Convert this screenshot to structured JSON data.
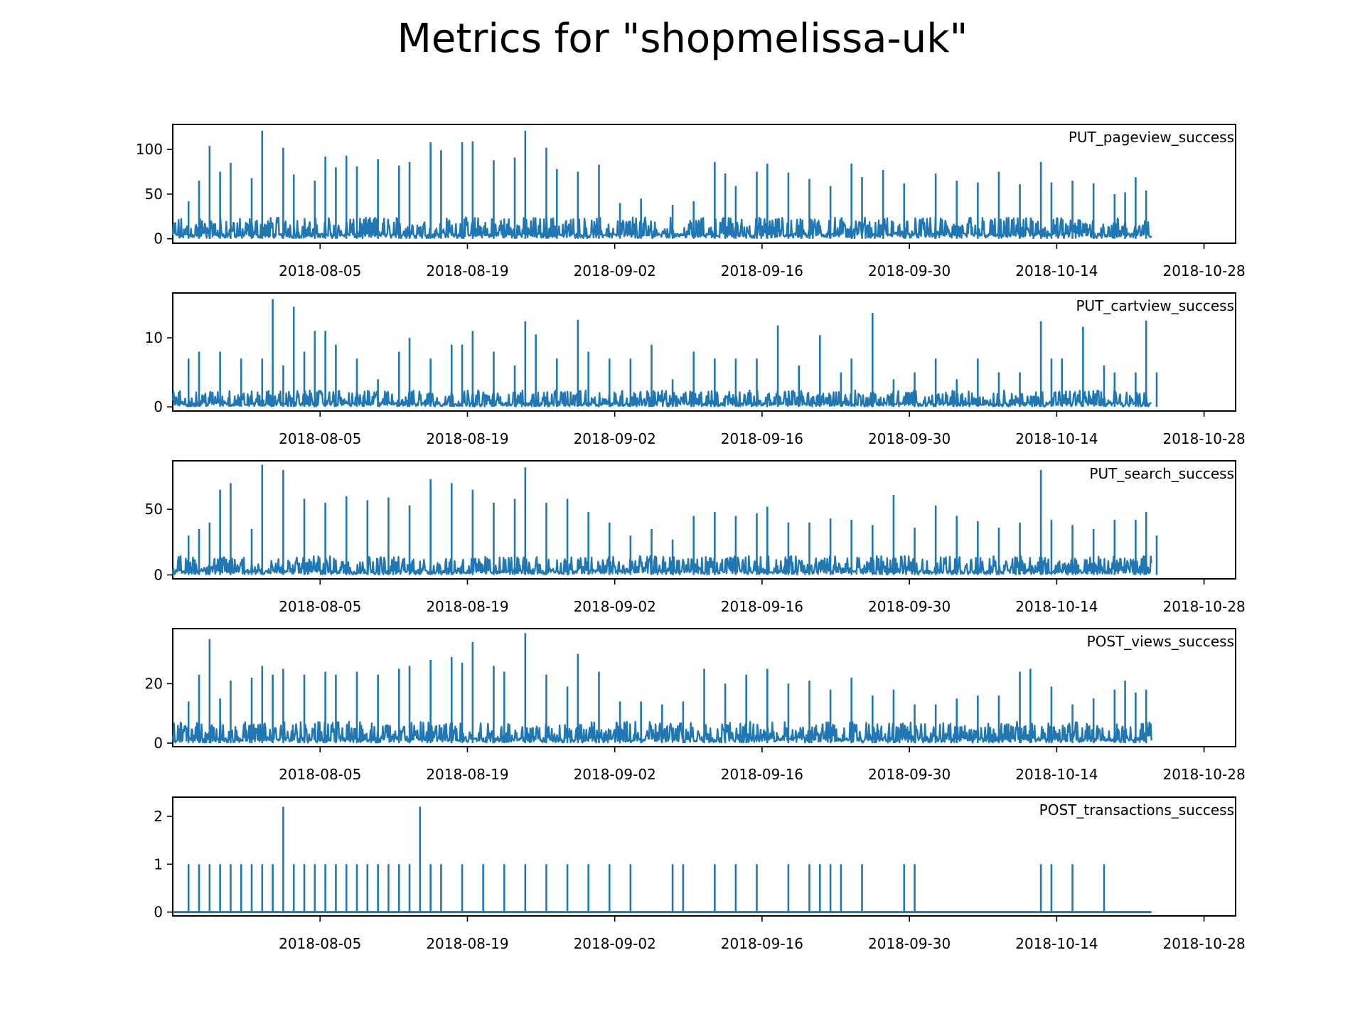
{
  "figure": {
    "title": "Metrics for \"shopmelissa-uk\""
  },
  "colors": {
    "series": "#1f77b4",
    "axis": "#000000",
    "background": "#ffffff"
  },
  "chart_data": [
    {
      "type": "line",
      "title": "PUT_pageview_success",
      "xlabel": "",
      "ylabel": "",
      "x_range": [
        "2018-07-22",
        "2018-10-23"
      ],
      "x_ticks": [
        "2018-08-05",
        "2018-08-19",
        "2018-09-02",
        "2018-09-16",
        "2018-09-30",
        "2018-10-14",
        "2018-10-28"
      ],
      "ylim": [
        -5,
        128
      ],
      "y_ticks": [
        0,
        50,
        100
      ],
      "legend": "none",
      "grid": false,
      "baseline": 10,
      "spikes": [
        [
          "2018-07-23",
          42
        ],
        [
          "2018-07-24",
          65
        ],
        [
          "2018-07-25",
          104
        ],
        [
          "2018-07-26",
          75
        ],
        [
          "2018-07-27",
          85
        ],
        [
          "2018-07-29",
          68
        ],
        [
          "2018-07-30",
          121
        ],
        [
          "2018-08-01",
          102
        ],
        [
          "2018-08-02",
          72
        ],
        [
          "2018-08-04",
          65
        ],
        [
          "2018-08-05",
          92
        ],
        [
          "2018-08-06",
          80
        ],
        [
          "2018-08-07",
          93
        ],
        [
          "2018-08-08",
          81
        ],
        [
          "2018-08-10",
          89
        ],
        [
          "2018-08-12",
          82
        ],
        [
          "2018-08-13",
          86
        ],
        [
          "2018-08-15",
          108
        ],
        [
          "2018-08-16",
          99
        ],
        [
          "2018-08-18",
          108
        ],
        [
          "2018-08-19",
          109
        ],
        [
          "2018-08-21",
          88
        ],
        [
          "2018-08-23",
          91
        ],
        [
          "2018-08-24",
          121
        ],
        [
          "2018-08-26",
          102
        ],
        [
          "2018-08-27",
          78
        ],
        [
          "2018-08-29",
          75
        ],
        [
          "2018-08-31",
          83
        ],
        [
          "2018-09-02",
          40
        ],
        [
          "2018-09-04",
          45
        ],
        [
          "2018-09-07",
          38
        ],
        [
          "2018-09-09",
          42
        ],
        [
          "2018-09-11",
          86
        ],
        [
          "2018-09-12",
          73
        ],
        [
          "2018-09-13",
          59
        ],
        [
          "2018-09-15",
          75
        ],
        [
          "2018-09-16",
          84
        ],
        [
          "2018-09-18",
          74
        ],
        [
          "2018-09-20",
          67
        ],
        [
          "2018-09-22",
          59
        ],
        [
          "2018-09-24",
          84
        ],
        [
          "2018-09-25",
          69
        ],
        [
          "2018-09-27",
          77
        ],
        [
          "2018-09-29",
          62
        ],
        [
          "2018-10-02",
          73
        ],
        [
          "2018-10-04",
          65
        ],
        [
          "2018-10-06",
          63
        ],
        [
          "2018-10-08",
          75
        ],
        [
          "2018-10-10",
          61
        ],
        [
          "2018-10-12",
          86
        ],
        [
          "2018-10-13",
          63
        ],
        [
          "2018-10-15",
          65
        ],
        [
          "2018-10-17",
          62
        ],
        [
          "2018-10-19",
          50
        ],
        [
          "2018-10-20",
          52
        ],
        [
          "2018-10-21",
          69
        ],
        [
          "2018-10-22",
          54
        ]
      ]
    },
    {
      "type": "line",
      "title": "PUT_cartview_success",
      "xlabel": "",
      "ylabel": "",
      "x_range": [
        "2018-07-22",
        "2018-10-23"
      ],
      "x_ticks": [
        "2018-08-05",
        "2018-08-19",
        "2018-09-02",
        "2018-09-16",
        "2018-09-30",
        "2018-10-14",
        "2018-10-28"
      ],
      "ylim": [
        -0.6,
        16.5
      ],
      "y_ticks": [
        0,
        10
      ],
      "legend": "none",
      "grid": false,
      "baseline": 1,
      "spikes": [
        [
          "2018-07-23",
          7
        ],
        [
          "2018-07-24",
          8
        ],
        [
          "2018-07-26",
          8
        ],
        [
          "2018-07-28",
          7
        ],
        [
          "2018-07-30",
          7
        ],
        [
          "2018-07-31",
          15.6
        ],
        [
          "2018-08-01",
          6
        ],
        [
          "2018-08-02",
          14.5
        ],
        [
          "2018-08-03",
          8
        ],
        [
          "2018-08-04",
          11
        ],
        [
          "2018-08-05",
          11
        ],
        [
          "2018-08-06",
          9
        ],
        [
          "2018-08-08",
          7
        ],
        [
          "2018-08-10",
          4
        ],
        [
          "2018-08-12",
          8
        ],
        [
          "2018-08-13",
          10
        ],
        [
          "2018-08-15",
          7
        ],
        [
          "2018-08-17",
          9
        ],
        [
          "2018-08-18",
          9
        ],
        [
          "2018-08-19",
          11
        ],
        [
          "2018-08-21",
          8
        ],
        [
          "2018-08-23",
          6
        ],
        [
          "2018-08-24",
          12.4
        ],
        [
          "2018-08-25",
          10.5
        ],
        [
          "2018-08-27",
          7
        ],
        [
          "2018-08-29",
          12.6
        ],
        [
          "2018-08-30",
          8
        ],
        [
          "2018-09-01",
          7
        ],
        [
          "2018-09-03",
          7
        ],
        [
          "2018-09-05",
          9
        ],
        [
          "2018-09-07",
          4
        ],
        [
          "2018-09-09",
          8
        ],
        [
          "2018-09-11",
          7
        ],
        [
          "2018-09-13",
          7
        ],
        [
          "2018-09-15",
          7
        ],
        [
          "2018-09-17",
          11.8
        ],
        [
          "2018-09-19",
          6
        ],
        [
          "2018-09-21",
          10.4
        ],
        [
          "2018-09-23",
          5
        ],
        [
          "2018-09-24",
          7
        ],
        [
          "2018-09-26",
          13.6
        ],
        [
          "2018-09-28",
          4
        ],
        [
          "2018-09-30",
          5
        ],
        [
          "2018-10-02",
          7
        ],
        [
          "2018-10-04",
          4
        ],
        [
          "2018-10-06",
          7
        ],
        [
          "2018-10-08",
          5
        ],
        [
          "2018-10-10",
          5
        ],
        [
          "2018-10-12",
          12.4
        ],
        [
          "2018-10-13",
          7
        ],
        [
          "2018-10-14",
          7
        ],
        [
          "2018-10-16",
          11.6
        ],
        [
          "2018-10-18",
          6
        ],
        [
          "2018-10-19",
          5
        ],
        [
          "2018-10-21",
          5
        ],
        [
          "2018-10-22",
          12.5
        ],
        [
          "2018-10-23",
          5
        ]
      ]
    },
    {
      "type": "line",
      "title": "PUT_search_success",
      "xlabel": "",
      "ylabel": "",
      "x_range": [
        "2018-07-22",
        "2018-10-23"
      ],
      "x_ticks": [
        "2018-08-05",
        "2018-08-19",
        "2018-09-02",
        "2018-09-16",
        "2018-09-30",
        "2018-10-14",
        "2018-10-28"
      ],
      "ylim": [
        -3,
        87
      ],
      "y_ticks": [
        0,
        50
      ],
      "legend": "none",
      "grid": false,
      "baseline": 6,
      "spikes": [
        [
          "2018-07-23",
          30
        ],
        [
          "2018-07-24",
          35
        ],
        [
          "2018-07-25",
          40
        ],
        [
          "2018-07-26",
          65
        ],
        [
          "2018-07-27",
          70
        ],
        [
          "2018-07-29",
          35
        ],
        [
          "2018-07-30",
          84
        ],
        [
          "2018-08-01",
          80
        ],
        [
          "2018-08-03",
          58
        ],
        [
          "2018-08-05",
          55
        ],
        [
          "2018-08-07",
          60
        ],
        [
          "2018-08-09",
          57
        ],
        [
          "2018-08-11",
          59
        ],
        [
          "2018-08-13",
          53
        ],
        [
          "2018-08-15",
          73
        ],
        [
          "2018-08-17",
          70
        ],
        [
          "2018-08-19",
          65
        ],
        [
          "2018-08-21",
          55
        ],
        [
          "2018-08-23",
          58
        ],
        [
          "2018-08-24",
          82
        ],
        [
          "2018-08-26",
          55
        ],
        [
          "2018-08-28",
          58
        ],
        [
          "2018-08-30",
          48
        ],
        [
          "2018-09-01",
          40
        ],
        [
          "2018-09-03",
          30
        ],
        [
          "2018-09-05",
          35
        ],
        [
          "2018-09-07",
          27
        ],
        [
          "2018-09-09",
          45
        ],
        [
          "2018-09-11",
          48
        ],
        [
          "2018-09-13",
          45
        ],
        [
          "2018-09-15",
          47
        ],
        [
          "2018-09-16",
          52
        ],
        [
          "2018-09-18",
          40
        ],
        [
          "2018-09-20",
          40
        ],
        [
          "2018-09-22",
          43
        ],
        [
          "2018-09-24",
          42
        ],
        [
          "2018-09-26",
          38
        ],
        [
          "2018-09-28",
          61
        ],
        [
          "2018-09-30",
          36
        ],
        [
          "2018-10-02",
          53
        ],
        [
          "2018-10-04",
          45
        ],
        [
          "2018-10-06",
          41
        ],
        [
          "2018-10-08",
          36
        ],
        [
          "2018-10-10",
          40
        ],
        [
          "2018-10-12",
          80
        ],
        [
          "2018-10-13",
          42
        ],
        [
          "2018-10-15",
          38
        ],
        [
          "2018-10-17",
          35
        ],
        [
          "2018-10-19",
          42
        ],
        [
          "2018-10-21",
          42
        ],
        [
          "2018-10-22",
          48
        ],
        [
          "2018-10-23",
          30
        ]
      ]
    },
    {
      "type": "line",
      "title": "POST_views_success",
      "xlabel": "",
      "ylabel": "",
      "x_range": [
        "2018-07-22",
        "2018-10-23"
      ],
      "x_ticks": [
        "2018-08-05",
        "2018-08-19",
        "2018-09-02",
        "2018-09-16",
        "2018-09-30",
        "2018-10-14",
        "2018-10-28"
      ],
      "ylim": [
        -1.2,
        38.5
      ],
      "y_ticks": [
        0,
        20
      ],
      "legend": "none",
      "grid": false,
      "baseline": 3,
      "spikes": [
        [
          "2018-07-23",
          14
        ],
        [
          "2018-07-24",
          23
        ],
        [
          "2018-07-25",
          35
        ],
        [
          "2018-07-26",
          15
        ],
        [
          "2018-07-27",
          21
        ],
        [
          "2018-07-29",
          22
        ],
        [
          "2018-07-30",
          26
        ],
        [
          "2018-07-31",
          23
        ],
        [
          "2018-08-01",
          25
        ],
        [
          "2018-08-03",
          23
        ],
        [
          "2018-08-05",
          24
        ],
        [
          "2018-08-06",
          23
        ],
        [
          "2018-08-08",
          24
        ],
        [
          "2018-08-10",
          23
        ],
        [
          "2018-08-12",
          25
        ],
        [
          "2018-08-13",
          26
        ],
        [
          "2018-08-15",
          28
        ],
        [
          "2018-08-17",
          29
        ],
        [
          "2018-08-18",
          27
        ],
        [
          "2018-08-19",
          34
        ],
        [
          "2018-08-21",
          26
        ],
        [
          "2018-08-22",
          24
        ],
        [
          "2018-08-24",
          37
        ],
        [
          "2018-08-26",
          23
        ],
        [
          "2018-08-28",
          19
        ],
        [
          "2018-08-29",
          30
        ],
        [
          "2018-08-31",
          24
        ],
        [
          "2018-09-02",
          14
        ],
        [
          "2018-09-04",
          14
        ],
        [
          "2018-09-06",
          13
        ],
        [
          "2018-09-08",
          14
        ],
        [
          "2018-09-10",
          25
        ],
        [
          "2018-09-12",
          20
        ],
        [
          "2018-09-14",
          23
        ],
        [
          "2018-09-16",
          25
        ],
        [
          "2018-09-18",
          20
        ],
        [
          "2018-09-20",
          21
        ],
        [
          "2018-09-22",
          18
        ],
        [
          "2018-09-24",
          22
        ],
        [
          "2018-09-26",
          16
        ],
        [
          "2018-09-28",
          18
        ],
        [
          "2018-09-30",
          13
        ],
        [
          "2018-10-02",
          13
        ],
        [
          "2018-10-04",
          15
        ],
        [
          "2018-10-06",
          16
        ],
        [
          "2018-10-08",
          16
        ],
        [
          "2018-10-10",
          24
        ],
        [
          "2018-10-11",
          25
        ],
        [
          "2018-10-13",
          19
        ],
        [
          "2018-10-15",
          13
        ],
        [
          "2018-10-17",
          15
        ],
        [
          "2018-10-19",
          18
        ],
        [
          "2018-10-20",
          21
        ],
        [
          "2018-10-21",
          17
        ],
        [
          "2018-10-22",
          18
        ]
      ]
    },
    {
      "type": "line",
      "title": "POST_transactions_success",
      "xlabel": "",
      "ylabel": "",
      "x_range": [
        "2018-07-22",
        "2018-10-23"
      ],
      "x_ticks": [
        "2018-08-05",
        "2018-08-19",
        "2018-09-02",
        "2018-09-16",
        "2018-09-30",
        "2018-10-14",
        "2018-10-28"
      ],
      "ylim": [
        -0.08,
        2.4
      ],
      "y_ticks": [
        0,
        1,
        2
      ],
      "legend": "none",
      "grid": false,
      "baseline": 0,
      "spikes": [
        [
          "2018-07-23",
          1
        ],
        [
          "2018-07-24",
          1
        ],
        [
          "2018-07-25",
          1
        ],
        [
          "2018-07-26",
          1
        ],
        [
          "2018-07-27",
          1
        ],
        [
          "2018-07-28",
          1
        ],
        [
          "2018-07-29",
          1
        ],
        [
          "2018-07-30",
          1
        ],
        [
          "2018-07-31",
          1
        ],
        [
          "2018-08-01",
          2.2
        ],
        [
          "2018-08-02",
          1
        ],
        [
          "2018-08-03",
          1
        ],
        [
          "2018-08-04",
          1
        ],
        [
          "2018-08-05",
          1
        ],
        [
          "2018-08-06",
          1
        ],
        [
          "2018-08-07",
          1
        ],
        [
          "2018-08-08",
          1
        ],
        [
          "2018-08-09",
          1
        ],
        [
          "2018-08-10",
          1
        ],
        [
          "2018-08-11",
          1
        ],
        [
          "2018-08-12",
          1
        ],
        [
          "2018-08-13",
          1
        ],
        [
          "2018-08-14",
          2.2
        ],
        [
          "2018-08-15",
          1
        ],
        [
          "2018-08-16",
          1
        ],
        [
          "2018-08-18",
          1
        ],
        [
          "2018-08-20",
          1
        ],
        [
          "2018-08-22",
          1
        ],
        [
          "2018-08-24",
          1
        ],
        [
          "2018-08-26",
          1
        ],
        [
          "2018-08-28",
          1
        ],
        [
          "2018-08-30",
          1
        ],
        [
          "2018-09-01",
          1
        ],
        [
          "2018-09-03",
          1
        ],
        [
          "2018-09-07",
          1
        ],
        [
          "2018-09-08",
          1
        ],
        [
          "2018-09-11",
          1
        ],
        [
          "2018-09-13",
          1
        ],
        [
          "2018-09-15",
          1
        ],
        [
          "2018-09-18",
          1
        ],
        [
          "2018-09-20",
          1
        ],
        [
          "2018-09-21",
          1
        ],
        [
          "2018-09-22",
          1
        ],
        [
          "2018-09-23",
          1
        ],
        [
          "2018-09-25",
          1
        ],
        [
          "2018-09-29",
          1
        ],
        [
          "2018-09-30",
          1
        ],
        [
          "2018-10-12",
          1
        ],
        [
          "2018-10-13",
          1
        ],
        [
          "2018-10-15",
          1
        ],
        [
          "2018-10-18",
          1
        ]
      ]
    }
  ]
}
